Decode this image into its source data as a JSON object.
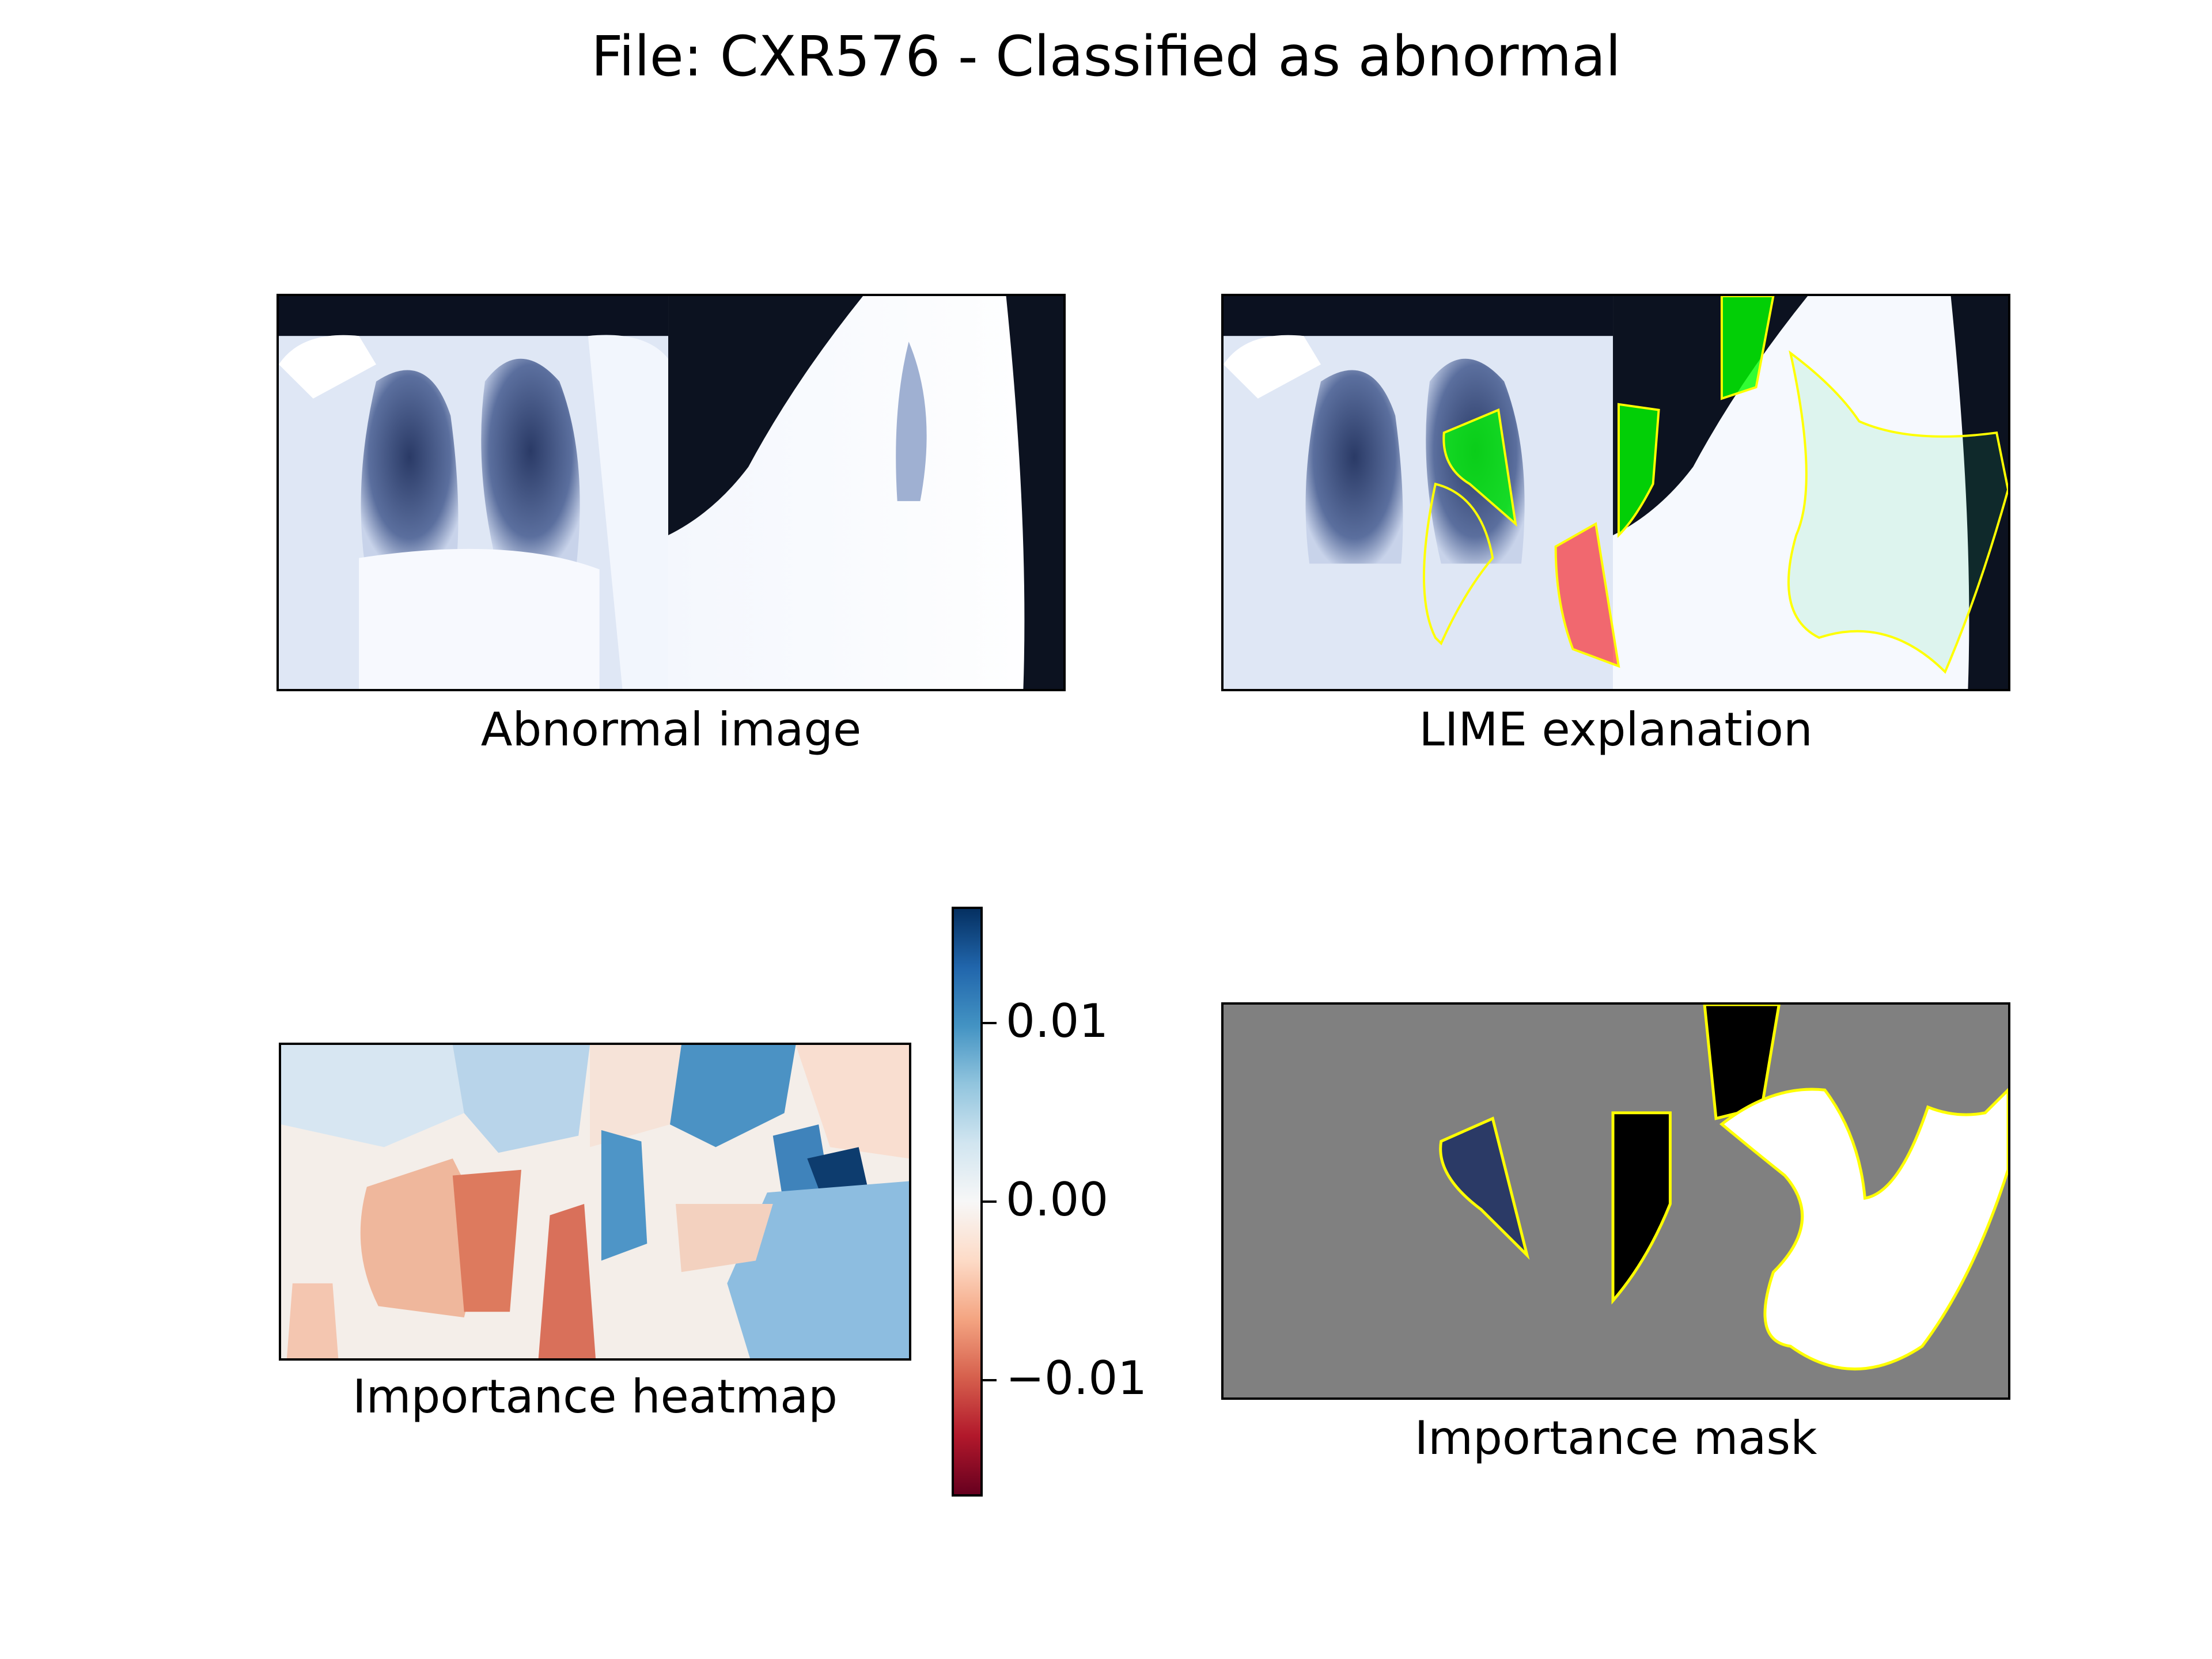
{
  "figure": {
    "title": "File: CXR576 - Classified as abnormal"
  },
  "panels": {
    "original": {
      "caption": "Abnormal image"
    },
    "lime": {
      "caption": "LIME explanation"
    },
    "heatmap": {
      "caption": "Importance heatmap"
    },
    "mask": {
      "caption": "Importance mask"
    }
  },
  "colorbar": {
    "colormap": "RdBu",
    "range": [
      -0.0165,
      0.0165
    ],
    "ticks": [
      {
        "value": 0.01,
        "label": "0.01"
      },
      {
        "value": 0.0,
        "label": "0.00"
      },
      {
        "value": -0.01,
        "label": "−0.01"
      }
    ]
  },
  "colors": {
    "positive_region": "#00ff00",
    "negative_region": "#ff0000",
    "boundary": "#ffff00",
    "mask_background": "#808080"
  }
}
